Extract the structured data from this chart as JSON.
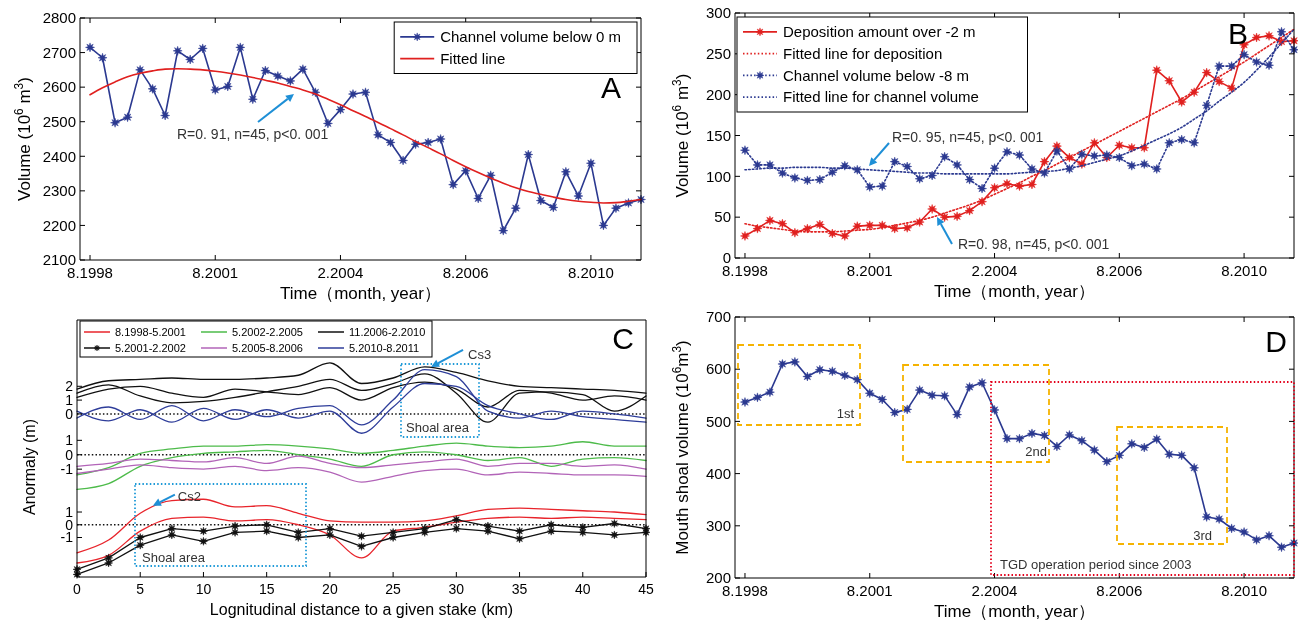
{
  "chart_data": [
    {
      "type": "line",
      "title": "A",
      "xlabel": "Time（month, year）",
      "ylabel": "Volume (10$^{6}$ m$^{3}$)",
      "categories": [
        "8.1998",
        null,
        null,
        null,
        null,
        null,
        null,
        null,
        null,
        null,
        "8.2001",
        null,
        null,
        null,
        null,
        null,
        null,
        null,
        null,
        null,
        "2.2004",
        null,
        null,
        null,
        null,
        null,
        null,
        null,
        null,
        null,
        "8.2006",
        null,
        null,
        null,
        null,
        null,
        null,
        null,
        null,
        null,
        "8.2010",
        null,
        null,
        null,
        null
      ],
      "ylim": [
        2100,
        2800
      ],
      "yticks": [
        2100,
        2200,
        2300,
        2400,
        2500,
        2600,
        2700,
        2800
      ],
      "legend": "top right",
      "series": [
        {
          "name": "Channel volume below 0 m",
          "color": "#2b3990",
          "marker": "star",
          "line_style": "solid",
          "values": [
            2715,
            2685,
            2497,
            2513,
            2650,
            2595,
            2518,
            2705,
            2680,
            2712,
            2592,
            2602,
            2715,
            2565,
            2648,
            2632,
            2618,
            2652,
            2585,
            2495,
            2535,
            2580,
            2585,
            2462,
            2440,
            2388,
            2435,
            2440,
            2450,
            2318,
            2358,
            2278,
            2345,
            2185,
            2250,
            2405,
            2272,
            2252,
            2355,
            2285,
            2380,
            2200,
            2250,
            2265,
            2275
          ]
        },
        {
          "name": "Fitted line",
          "color": "#e0201f",
          "marker": "none",
          "line_style": "solid",
          "values": [
            2578,
            2598,
            2615,
            2630,
            2640,
            2647,
            2652,
            2653,
            2652,
            2650,
            2646,
            2641,
            2635,
            2628,
            2620,
            2612,
            2602,
            2592,
            2580,
            2565,
            2549,
            2532,
            2515,
            2498,
            2480,
            2462,
            2443,
            2425,
            2407,
            2388,
            2370,
            2353,
            2337,
            2322,
            2309,
            2298,
            2290,
            2282,
            2275,
            2270,
            2267,
            2265,
            2266,
            2270,
            2275
          ]
        }
      ],
      "annotations": [
        "R=0. 91, n=45, p<0. 001"
      ]
    },
    {
      "type": "line",
      "title": "B",
      "xlabel": "Time（month, year）",
      "ylabel": "Volume (10$^{6}$ m$^{3}$)",
      "categories": [
        "8.1998",
        null,
        null,
        null,
        null,
        null,
        null,
        null,
        null,
        null,
        "8.2001",
        null,
        null,
        null,
        null,
        null,
        null,
        null,
        null,
        null,
        "2.2004",
        null,
        null,
        null,
        null,
        null,
        null,
        null,
        null,
        null,
        "8.2006",
        null,
        null,
        null,
        null,
        null,
        null,
        null,
        null,
        null,
        "8.2010",
        null,
        null,
        null,
        null
      ],
      "ylim": [
        0,
        300
      ],
      "yticks": [
        0,
        50,
        100,
        150,
        200,
        250,
        300
      ],
      "legend": "top left",
      "series": [
        {
          "name": "Deposition amount over -2 m",
          "color": "#e0201f",
          "marker": "star",
          "line_style": "solid",
          "values": [
            27,
            36,
            46,
            42,
            31,
            36,
            41,
            30,
            27,
            39,
            40,
            40,
            36,
            37,
            44,
            60,
            50,
            51,
            58,
            69,
            86,
            91,
            88,
            90,
            118,
            137,
            123,
            115,
            141,
            123,
            138,
            135,
            135,
            230,
            217,
            191,
            203,
            227,
            216,
            208,
            261,
            270,
            272,
            265,
            266
          ]
        },
        {
          "name": "Fitted line for deposition",
          "color": "#e0201f",
          "marker": "none",
          "line_style": "dotted",
          "values": [
            42,
            39,
            37,
            35,
            33,
            32,
            32,
            32,
            33,
            34,
            35,
            37,
            40,
            43,
            46,
            50,
            55,
            60,
            65,
            71,
            78,
            85,
            92,
            100,
            107,
            115,
            123,
            131,
            139,
            147,
            155,
            163,
            171,
            179,
            187,
            195,
            204,
            213,
            222,
            231,
            240,
            250,
            260,
            270,
            280
          ]
        },
        {
          "name": "Channel volume below  -8 m",
          "color": "#2b3990",
          "marker": "star",
          "line_style": "dotted",
          "values": [
            132,
            114,
            114,
            104,
            98,
            95,
            96,
            105,
            113,
            108,
            87,
            88,
            118,
            112,
            97,
            101,
            124,
            114,
            96,
            85,
            110,
            130,
            126,
            109,
            104,
            131,
            109,
            127,
            125,
            126,
            123,
            113,
            115,
            109,
            141,
            145,
            141,
            187,
            235,
            235,
            249,
            240,
            236,
            277,
            255
          ]
        },
        {
          "name": "Fitted line for channel volume",
          "color": "#2b3990",
          "marker": "none",
          "line_style": "dotted",
          "values": [
            108,
            109,
            110,
            110,
            111,
            111,
            111,
            110,
            110,
            109,
            108,
            107,
            106,
            105,
            104,
            104,
            103,
            103,
            103,
            103,
            103,
            103,
            104,
            105,
            106,
            107,
            110,
            113,
            117,
            121,
            125,
            131,
            138,
            145,
            152,
            160,
            170,
            180,
            192,
            203,
            215,
            230,
            246,
            263,
            280
          ]
        }
      ],
      "annotations": [
        "R=0. 95, n=45, p<0. 001",
        "R=0. 98, n=45, p<0. 001"
      ]
    },
    {
      "type": "line",
      "title": "C",
      "x": [
        0,
        2.5,
        5,
        7.5,
        10,
        12.5,
        15,
        17.5,
        20,
        22.5,
        25,
        27.5,
        30,
        32.5,
        35,
        37.5,
        40,
        42.5,
        45
      ],
      "xlim": [
        0,
        45
      ],
      "ylim": [
        -1.6,
        6.8
      ],
      "yticks": [
        0,
        1,
        2
      ],
      "tick_labels": "y",
      "legend": "top",
      "series": [
        {
          "name": "11.2006-2.2010",
          "color": "#111111",
          "marker": "none",
          "line_style": "solid",
          "values": [
            1.8,
            2.4,
            2.5,
            2.6,
            2.5,
            2.5,
            2.6,
            2.8,
            3.7,
            2.2,
            2.6,
            3.4,
            3.0,
            2.4,
            2.0,
            1.9,
            1.8,
            1.7,
            1.5
          ]
        },
        {
          "color": "#111111",
          "marker": "none",
          "line_style": "solid",
          "values": [
            1.2,
            1.8,
            2.0,
            1.5,
            1.2,
            1.8,
            1.6,
            1.4,
            1.9,
            1.0,
            1.9,
            2.3,
            1.8,
            0.5,
            1.7,
            1.5,
            1.0,
            1.3,
            1.0
          ]
        },
        {
          "color": "#111111",
          "marker": "none",
          "line_style": "solid",
          "values": [
            1.5,
            2.1,
            1.3,
            0.8,
            0.9,
            1.2,
            1.6,
            2.0,
            2.5,
            1.7,
            2.2,
            2.9,
            1.5,
            -0.6,
            1.5,
            1.6,
            1.4,
            0.2,
            1.3
          ]
        },
        {
          "name": "5.2010-8.2011",
          "color": "#2e3d9a",
          "marker": "none",
          "line_style": "solid",
          "values": [
            -0.3,
            0.5,
            -0.4,
            0.6,
            -0.5,
            0.3,
            -0.2,
            0.4,
            0.6,
            -0.8,
            1.0,
            3.2,
            2.7,
            0.2,
            -0.3,
            0.2,
            -0.2,
            -0.4,
            -0.6
          ]
        },
        {
          "color": "#2e3d9a",
          "marker": "none",
          "line_style": "solid",
          "values": [
            0.2,
            -0.5,
            0.3,
            -0.6,
            0.4,
            -0.4,
            0.3,
            -0.3,
            0.2,
            -1.4,
            0.5,
            2.2,
            2.0,
            0.6,
            0.0,
            -0.4,
            0.2,
            0.0,
            -0.3
          ]
        }
      ],
      "ref_lines": [
        {
          "axis": "y",
          "value": 0,
          "color": "#111111",
          "line_style": "dotted"
        }
      ],
      "annotations": [
        {
          "text": "Cs3",
          "x": 28,
          "y": 3.4
        },
        "Shoal area"
      ]
    },
    {
      "type": "line",
      "ylabel": "Anormaly (m)",
      "x": [
        0,
        2.5,
        5,
        7.5,
        10,
        12.5,
        15,
        17.5,
        20,
        22.5,
        25,
        27.5,
        30,
        32.5,
        35,
        37.5,
        40,
        42.5,
        45
      ],
      "xlim": [
        0,
        45
      ],
      "ylim": [
        -3,
        1.3
      ],
      "yticks": [
        -1,
        0,
        1
      ],
      "tick_labels": "y",
      "legend": "top",
      "series": [
        {
          "name": "5.2002-2.2005",
          "color": "#4dbb4a",
          "marker": "none",
          "line_style": "solid",
          "values": [
            -1.4,
            -0.9,
            0.1,
            0.4,
            0.6,
            0.6,
            0.7,
            0.6,
            0.4,
            0.1,
            0.3,
            0.6,
            0.8,
            0.6,
            0.5,
            0.6,
            0.9,
            0.6,
            0.6
          ]
        },
        {
          "color": "#4dbb4a",
          "marker": "none",
          "line_style": "solid",
          "values": [
            -2.4,
            -2.0,
            -0.8,
            -0.2,
            0.1,
            0.2,
            0.3,
            0.0,
            -0.3,
            -0.8,
            0.0,
            0.2,
            0.0,
            -0.4,
            -0.2,
            -0.8,
            -0.3,
            -0.2,
            -0.4
          ]
        },
        {
          "name": "5.2005-8.2006",
          "color": "#b264b8",
          "marker": "none",
          "line_style": "solid",
          "values": [
            -0.8,
            -0.6,
            -0.3,
            -0.4,
            -0.5,
            -0.2,
            -0.6,
            -0.1,
            -0.6,
            -0.9,
            -0.7,
            -0.5,
            -0.3,
            -0.8,
            -0.6,
            -0.6,
            -0.8,
            -0.7,
            -1.0
          ]
        },
        {
          "color": "#b264b8",
          "marker": "none",
          "line_style": "solid",
          "values": [
            -1.3,
            -1.0,
            -0.7,
            -0.9,
            -1.0,
            -0.8,
            -1.1,
            -0.9,
            -1.2,
            -1.9,
            -1.5,
            -1.1,
            -1.0,
            -1.4,
            -1.2,
            -1.3,
            -1.4,
            -1.4,
            -1.5
          ]
        }
      ],
      "ref_lines": [
        {
          "axis": "y",
          "value": 0,
          "color": "#111111",
          "line_style": "dotted"
        }
      ]
    },
    {
      "type": "line",
      "xlabel": "Lognitudinal distance to a given stake (km)",
      "x": [
        0,
        2.5,
        5,
        7.5,
        10,
        12.5,
        15,
        17.5,
        20,
        22.5,
        25,
        27.5,
        30,
        32.5,
        35,
        37.5,
        40,
        42.5,
        45
      ],
      "xlim": [
        0,
        45
      ],
      "xticks": [
        0,
        5,
        10,
        15,
        20,
        25,
        30,
        35,
        40,
        45
      ],
      "ylim": [
        -4.1,
        2.1
      ],
      "yticks": [
        -1,
        0,
        1
      ],
      "legend": "top",
      "series": [
        {
          "name": "8.1998-5.2001",
          "color": "#e8242b",
          "marker": "none",
          "line_style": "solid",
          "values": [
            -2.2,
            -1.2,
            0.9,
            1.9,
            2.0,
            1.4,
            1.5,
            0.9,
            0.3,
            0.2,
            0.2,
            0.3,
            0.7,
            1.2,
            1.3,
            1.2,
            1.1,
            1.0,
            0.8
          ]
        },
        {
          "color": "#e8242b",
          "marker": "none",
          "line_style": "solid",
          "values": [
            -3.0,
            -2.4,
            -0.5,
            0.5,
            0.6,
            0.3,
            0.4,
            0.0,
            -0.8,
            -2.6,
            -0.5,
            -0.2,
            0.2,
            0.5,
            0.6,
            0.5,
            0.6,
            0.5,
            0.4
          ]
        },
        {
          "name": "5.2001-2.2002",
          "color": "#111111",
          "marker": "star",
          "line_style": "solid",
          "values": [
            -3.5,
            -2.6,
            -1.0,
            -0.3,
            -0.5,
            -0.1,
            0.0,
            -0.6,
            -0.3,
            -0.9,
            -0.6,
            -0.3,
            0.4,
            -0.1,
            -0.5,
            0.0,
            -0.2,
            0.1,
            -0.3
          ]
        },
        {
          "color": "#111111",
          "marker": "star",
          "line_style": "solid",
          "values": [
            -3.9,
            -3.0,
            -1.6,
            -0.8,
            -1.3,
            -0.6,
            -0.5,
            -1.0,
            -0.8,
            -1.7,
            -1.0,
            -0.6,
            -0.3,
            -0.5,
            -1.1,
            -0.5,
            -0.6,
            -0.8,
            -0.6
          ]
        }
      ],
      "ref_lines": [
        {
          "axis": "y",
          "value": 0,
          "color": "#111111",
          "line_style": "dotted"
        }
      ],
      "annotations": [
        {
          "text": "Cs2",
          "x": 6,
          "y": 1.5
        },
        "Shoal area"
      ]
    },
    {
      "type": "line",
      "title": "D",
      "xlabel": "Time（month, year）",
      "ylabel": "Mouth shoal volume (10$^{6}$m$^{3}$)",
      "categories": [
        "8.1998",
        null,
        null,
        null,
        null,
        null,
        null,
        null,
        null,
        null,
        "8.2001",
        null,
        null,
        null,
        null,
        null,
        null,
        null,
        null,
        null,
        "2.2004",
        null,
        null,
        null,
        null,
        null,
        null,
        null,
        null,
        null,
        "8.2006",
        null,
        null,
        null,
        null,
        null,
        null,
        null,
        null,
        null,
        "8.2010",
        null,
        null,
        null,
        null
      ],
      "ylim": [
        200,
        700
      ],
      "yticks": [
        200,
        300,
        400,
        500,
        600,
        700
      ],
      "series": [
        {
          "color": "#2b3990",
          "marker": "star",
          "line_style": "solid",
          "values": [
            537,
            546,
            556,
            610,
            614,
            586,
            599,
            596,
            588,
            580,
            554,
            542,
            517,
            523,
            560,
            550,
            549,
            513,
            566,
            574,
            522,
            467,
            467,
            477,
            473,
            452,
            474,
            463,
            445,
            423,
            435,
            457,
            450,
            466,
            437,
            435,
            411,
            317,
            313,
            295,
            288,
            273,
            281,
            259,
            267
          ]
        }
      ],
      "annotations": [
        "1st",
        "2nd",
        "3rd",
        "TGD operation period since 2003"
      ]
    }
  ]
}
